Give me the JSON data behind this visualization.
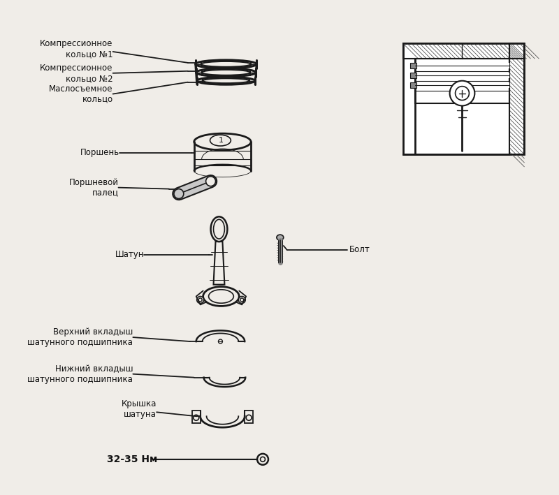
{
  "bg_color": "#f0ede8",
  "line_color": "#1a1a1a",
  "text_color": "#111111",
  "label_fontsize": 8.5,
  "bold_label_fontsize": 10,
  "labels": {
    "ring1": "Компрессионное\nкольцо №1",
    "ring2": "Компрессионное\nкольцо №2",
    "ring3": "Маслосъемное\nкольцо",
    "piston": "Поршень",
    "pin": "Поршневой\nпалец",
    "rod": "Шатун",
    "bolt": "Болт",
    "upper_insert": "Верхний вкладыш\nшатунного подшипника",
    "lower_insert": "Нижний вкладыш\nшатунного подшипника",
    "cap": "Крышка\nшатуна",
    "torque": "32-35 Нм"
  },
  "figsize": [
    8.0,
    7.09
  ],
  "dpi": 100
}
